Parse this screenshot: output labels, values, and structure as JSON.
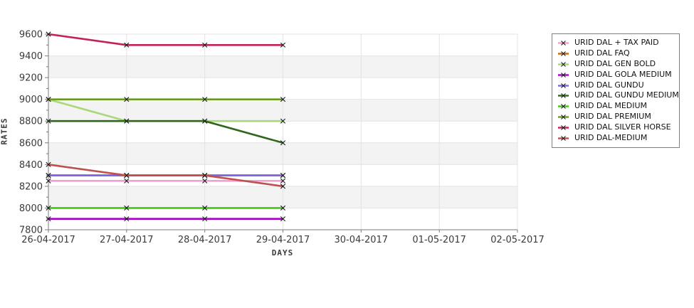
{
  "chart_data": {
    "type": "line",
    "title": "",
    "xlabel": "DAYS",
    "ylabel": "RATES",
    "x_ticks": [
      "26-04-2017",
      "27-04-2017",
      "28-04-2017",
      "29-04-2017",
      "30-04-2017",
      "01-05-2017",
      "02-05-2017"
    ],
    "x": [
      "26-04-2017",
      "27-04-2017",
      "28-04-2017",
      "29-04-2017"
    ],
    "y_ticks": [
      7800,
      8000,
      8200,
      8400,
      8600,
      8800,
      9000,
      9200,
      9400,
      9600
    ],
    "y_minor_step": 100,
    "ylim": [
      7800,
      9600
    ],
    "grid": "on",
    "plot_bands": "alternating",
    "legend_position": "right",
    "marker": "x",
    "series": [
      {
        "name": "URID DAL + TAX PAID",
        "color": "#f2a0d2",
        "values": [
          8250,
          8250,
          8250,
          8250
        ]
      },
      {
        "name": "URID DAL FAQ",
        "color": "#cc6600",
        "values": [
          8300,
          8300,
          8300,
          8300
        ]
      },
      {
        "name": "URID DAL GEN BOLD",
        "color": "#abd77b",
        "values": [
          9000,
          8800,
          8800,
          8800
        ]
      },
      {
        "name": "URID DAL GOLA MEDIUM",
        "color": "#aa00cc",
        "values": [
          7900,
          7900,
          7900,
          7900
        ]
      },
      {
        "name": "URID DAL GUNDU",
        "color": "#7f63e2",
        "values": [
          8300,
          8300,
          8300,
          8300
        ]
      },
      {
        "name": "URID DAL GUNDU MEDIUM",
        "color": "#31671b",
        "values": [
          8800,
          8800,
          8800,
          8600
        ]
      },
      {
        "name": "URID DAL MEDIUM",
        "color": "#41c90e",
        "values": [
          8000,
          8000,
          8000,
          8000
        ]
      },
      {
        "name": "URID DAL PREMIUM",
        "color": "#699b1e",
        "values": [
          9000,
          9000,
          9000,
          9000
        ]
      },
      {
        "name": "URID DAL SILVER HORSE",
        "color": "#c22352",
        "values": [
          9600,
          9500,
          9500,
          9500
        ]
      },
      {
        "name": "URID DAL-MEDIUM",
        "color": "#c0504d",
        "values": [
          8400,
          8300,
          8300,
          8200
        ]
      }
    ],
    "style": {
      "background": "#ffffff",
      "band_fill": "#f3f3f3",
      "grid_color": "#e3e3e3",
      "axis_color": "#7a7a7a",
      "tick_label_color": "#3a3a3a",
      "marker_color": "#1a1a1a",
      "legend_border": "#808080"
    }
  }
}
